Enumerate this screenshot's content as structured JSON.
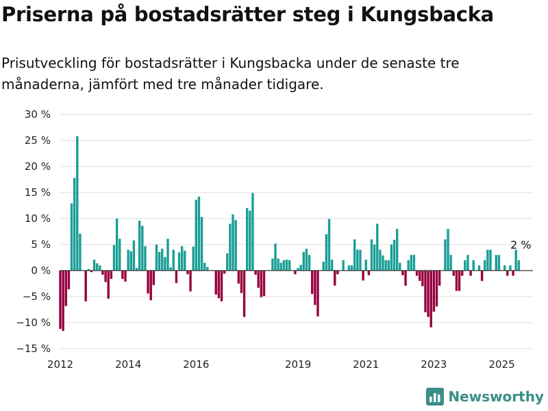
{
  "header": {
    "title": "Priserna på bostadsrätter steg i Kungsbacka",
    "subtitle": "Prisutveckling för bostadsrätter i Kungsbacka under de senaste tre månaderna, jämfört med tre månader tidigare."
  },
  "brand": {
    "name": "Newsworthy",
    "logo_icon": "bar-chart-logo-icon",
    "color": "#3a8f88"
  },
  "colors": {
    "positive": "#1a9e96",
    "negative": "#96003d"
  },
  "chart_data": {
    "type": "bar",
    "title": "Priserna på bostadsrätter steg i Kungsbacka",
    "subtitle": "Prisutveckling för bostadsrätter i Kungsbacka under de senaste tre månaderna, jämfört med tre månader tidigare.",
    "xlabel": "",
    "ylabel": "",
    "x_unit": "month",
    "ylim": [
      -15,
      30
    ],
    "yticks": [
      -15,
      -10,
      -5,
      0,
      5,
      10,
      15,
      20,
      25,
      30
    ],
    "ytick_labels": [
      "−15 %",
      "−10 %",
      "−5 %",
      "0 %",
      "5 %",
      "10 %",
      "15 %",
      "20 %",
      "25 %",
      "30 %"
    ],
    "xticks": [
      "2012-01",
      "2014-01",
      "2016-01",
      "2019-01",
      "2021-01",
      "2023-01",
      "2025-01"
    ],
    "xtick_labels": [
      "2012",
      "2014",
      "2016",
      "2019",
      "2021",
      "2023",
      "2025"
    ],
    "grid": true,
    "legend": "none",
    "annotation": {
      "text": "2 %",
      "x": "2025-07",
      "y": 2
    },
    "series": [
      {
        "points": [
          {
            "x": "2012-01",
            "y": -11.2
          },
          {
            "x": "2012-02",
            "y": -11.6
          },
          {
            "x": "2012-03",
            "y": -6.8
          },
          {
            "x": "2012-04",
            "y": -3.6
          },
          {
            "x": "2012-05",
            "y": 12.9
          },
          {
            "x": "2012-06",
            "y": 17.8
          },
          {
            "x": "2012-07",
            "y": 25.8
          },
          {
            "x": "2012-08",
            "y": 7.1
          },
          {
            "x": "2012-10",
            "y": -5.9
          },
          {
            "x": "2012-11",
            "y": 0.3
          },
          {
            "x": "2012-12",
            "y": -0.3
          },
          {
            "x": "2013-01",
            "y": 2.1
          },
          {
            "x": "2013-02",
            "y": 1.4
          },
          {
            "x": "2013-03",
            "y": 1.0
          },
          {
            "x": "2013-04",
            "y": -0.8
          },
          {
            "x": "2013-05",
            "y": -2.2
          },
          {
            "x": "2013-06",
            "y": -5.4
          },
          {
            "x": "2013-07",
            "y": -1.6
          },
          {
            "x": "2013-08",
            "y": 4.9
          },
          {
            "x": "2013-09",
            "y": 10.0
          },
          {
            "x": "2013-10",
            "y": 6.1
          },
          {
            "x": "2013-11",
            "y": -1.6
          },
          {
            "x": "2013-12",
            "y": -2.1
          },
          {
            "x": "2014-01",
            "y": 4.0
          },
          {
            "x": "2014-02",
            "y": 3.7
          },
          {
            "x": "2014-03",
            "y": 5.8
          },
          {
            "x": "2014-04",
            "y": 0.5
          },
          {
            "x": "2014-05",
            "y": 9.6
          },
          {
            "x": "2014-06",
            "y": 8.6
          },
          {
            "x": "2014-07",
            "y": 4.7
          },
          {
            "x": "2014-08",
            "y": -4.4
          },
          {
            "x": "2014-09",
            "y": -5.7
          },
          {
            "x": "2014-10",
            "y": -2.8
          },
          {
            "x": "2014-11",
            "y": 5.0
          },
          {
            "x": "2014-12",
            "y": 3.6
          },
          {
            "x": "2015-01",
            "y": 4.2
          },
          {
            "x": "2015-02",
            "y": 2.6
          },
          {
            "x": "2015-03",
            "y": 6.1
          },
          {
            "x": "2015-04",
            "y": 0.6
          },
          {
            "x": "2015-05",
            "y": 4.0
          },
          {
            "x": "2015-06",
            "y": -2.4
          },
          {
            "x": "2015-07",
            "y": 3.5
          },
          {
            "x": "2015-08",
            "y": 4.7
          },
          {
            "x": "2015-09",
            "y": 3.8
          },
          {
            "x": "2015-10",
            "y": -0.7
          },
          {
            "x": "2015-11",
            "y": -4.0
          },
          {
            "x": "2015-12",
            "y": 4.6
          },
          {
            "x": "2016-01",
            "y": 13.6
          },
          {
            "x": "2016-02",
            "y": 14.2
          },
          {
            "x": "2016-03",
            "y": 10.3
          },
          {
            "x": "2016-04",
            "y": 1.5
          },
          {
            "x": "2016-05",
            "y": 0.7
          },
          {
            "x": "2016-08",
            "y": -4.6
          },
          {
            "x": "2016-09",
            "y": -5.3
          },
          {
            "x": "2016-10",
            "y": -5.9
          },
          {
            "x": "2016-11",
            "y": -0.6
          },
          {
            "x": "2016-12",
            "y": 3.3
          },
          {
            "x": "2017-01",
            "y": 9.0
          },
          {
            "x": "2017-02",
            "y": 10.8
          },
          {
            "x": "2017-03",
            "y": 9.7
          },
          {
            "x": "2017-04",
            "y": -2.5
          },
          {
            "x": "2017-05",
            "y": -4.3
          },
          {
            "x": "2017-06",
            "y": -8.9
          },
          {
            "x": "2017-07",
            "y": 12.0
          },
          {
            "x": "2017-08",
            "y": 11.5
          },
          {
            "x": "2017-09",
            "y": 14.9
          },
          {
            "x": "2017-10",
            "y": -0.8
          },
          {
            "x": "2017-11",
            "y": -3.3
          },
          {
            "x": "2017-12",
            "y": -5.1
          },
          {
            "x": "2018-01",
            "y": -4.9
          },
          {
            "x": "2018-04",
            "y": 2.3
          },
          {
            "x": "2018-05",
            "y": 5.2
          },
          {
            "x": "2018-06",
            "y": 2.3
          },
          {
            "x": "2018-07",
            "y": 1.5
          },
          {
            "x": "2018-08",
            "y": 2.0
          },
          {
            "x": "2018-09",
            "y": 2.1
          },
          {
            "x": "2018-10",
            "y": 2.0
          },
          {
            "x": "2018-12",
            "y": -0.7
          },
          {
            "x": "2019-01",
            "y": 0.5
          },
          {
            "x": "2019-02",
            "y": 1.1
          },
          {
            "x": "2019-03",
            "y": 3.6
          },
          {
            "x": "2019-04",
            "y": 4.2
          },
          {
            "x": "2019-05",
            "y": 3.0
          },
          {
            "x": "2019-06",
            "y": -4.5
          },
          {
            "x": "2019-07",
            "y": -6.6
          },
          {
            "x": "2019-08",
            "y": -8.8
          },
          {
            "x": "2019-10",
            "y": 1.7
          },
          {
            "x": "2019-11",
            "y": 7.0
          },
          {
            "x": "2019-12",
            "y": 9.9
          },
          {
            "x": "2020-01",
            "y": 2.1
          },
          {
            "x": "2020-02",
            "y": -2.9
          },
          {
            "x": "2020-03",
            "y": -0.7
          },
          {
            "x": "2020-05",
            "y": 2.0
          },
          {
            "x": "2020-07",
            "y": 1.0
          },
          {
            "x": "2020-08",
            "y": 1.0
          },
          {
            "x": "2020-09",
            "y": 6.0
          },
          {
            "x": "2020-10",
            "y": 4.0
          },
          {
            "x": "2020-11",
            "y": 4.0
          },
          {
            "x": "2020-12",
            "y": -1.9
          },
          {
            "x": "2021-01",
            "y": 2.1
          },
          {
            "x": "2021-02",
            "y": -0.9
          },
          {
            "x": "2021-03",
            "y": 6.0
          },
          {
            "x": "2021-04",
            "y": 5.0
          },
          {
            "x": "2021-05",
            "y": 9.0
          },
          {
            "x": "2021-06",
            "y": 4.0
          },
          {
            "x": "2021-07",
            "y": 2.9
          },
          {
            "x": "2021-08",
            "y": 2.0
          },
          {
            "x": "2021-09",
            "y": 2.0
          },
          {
            "x": "2021-10",
            "y": 5.0
          },
          {
            "x": "2021-11",
            "y": 5.9
          },
          {
            "x": "2021-12",
            "y": 8.0
          },
          {
            "x": "2022-01",
            "y": 1.5
          },
          {
            "x": "2022-02",
            "y": -0.9
          },
          {
            "x": "2022-03",
            "y": -2.9
          },
          {
            "x": "2022-04",
            "y": 2.0
          },
          {
            "x": "2022-05",
            "y": 3.0
          },
          {
            "x": "2022-06",
            "y": 3.0
          },
          {
            "x": "2022-07",
            "y": -1.0
          },
          {
            "x": "2022-08",
            "y": -2.0
          },
          {
            "x": "2022-09",
            "y": -3.0
          },
          {
            "x": "2022-10",
            "y": -8.0
          },
          {
            "x": "2022-11",
            "y": -8.9
          },
          {
            "x": "2022-12",
            "y": -10.9
          },
          {
            "x": "2023-01",
            "y": -7.9
          },
          {
            "x": "2023-02",
            "y": -6.9
          },
          {
            "x": "2023-03",
            "y": -2.9
          },
          {
            "x": "2023-05",
            "y": 6.0
          },
          {
            "x": "2023-06",
            "y": 8.0
          },
          {
            "x": "2023-07",
            "y": 3.0
          },
          {
            "x": "2023-08",
            "y": -1.0
          },
          {
            "x": "2023-09",
            "y": -3.9
          },
          {
            "x": "2023-10",
            "y": -3.9
          },
          {
            "x": "2023-11",
            "y": -1.0
          },
          {
            "x": "2023-12",
            "y": 2.0
          },
          {
            "x": "2024-01",
            "y": 3.0
          },
          {
            "x": "2024-02",
            "y": -1.0
          },
          {
            "x": "2024-03",
            "y": 2.0
          },
          {
            "x": "2024-05",
            "y": 1.0
          },
          {
            "x": "2024-06",
            "y": -2.0
          },
          {
            "x": "2024-07",
            "y": 2.0
          },
          {
            "x": "2024-08",
            "y": 4.0
          },
          {
            "x": "2024-09",
            "y": 4.0
          },
          {
            "x": "2024-11",
            "y": 3.0
          },
          {
            "x": "2024-12",
            "y": 3.0
          },
          {
            "x": "2025-02",
            "y": 1.0
          },
          {
            "x": "2025-03",
            "y": -1.0
          },
          {
            "x": "2025-04",
            "y": 1.0
          },
          {
            "x": "2025-05",
            "y": -1.0
          },
          {
            "x": "2025-06",
            "y": 4.0
          },
          {
            "x": "2025-07",
            "y": 2.0
          }
        ]
      }
    ]
  }
}
